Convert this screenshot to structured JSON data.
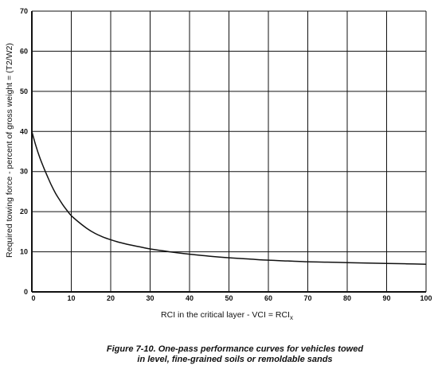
{
  "figure": {
    "caption_line_1": "Figure 7-10.  One-pass performance curves for vehicles towed",
    "caption_line_2": "in level, fine-grained soils or remoldable sands"
  },
  "chart_data": {
    "type": "line",
    "title": "",
    "xlabel": "RCI in the critical layer - VCI = RCI",
    "xlabel_subscript": "x",
    "ylabel": "Required towing force - percent of gross weight = (T2/W2)",
    "xlim": [
      0,
      100
    ],
    "ylim": [
      0,
      70
    ],
    "x_ticks": [
      0,
      10,
      20,
      30,
      40,
      50,
      60,
      70,
      80,
      90,
      100
    ],
    "y_ticks": [
      0,
      10,
      20,
      30,
      40,
      50,
      60,
      70
    ],
    "grid": true,
    "legend": "none",
    "series": [
      {
        "x": [
          0,
          1,
          2,
          3,
          4,
          5,
          6,
          7,
          8,
          9,
          10,
          12,
          14,
          16,
          18,
          20,
          22,
          25,
          28,
          30,
          35,
          40,
          45,
          50,
          55,
          60,
          65,
          70,
          75,
          80,
          85,
          90,
          95,
          100
        ],
        "y": [
          40,
          36.5,
          33.5,
          31,
          28.7,
          26.5,
          24.6,
          23,
          21.5,
          20.2,
          19,
          17.3,
          15.8,
          14.6,
          13.7,
          13,
          12.4,
          11.7,
          11.1,
          10.7,
          10,
          9.4,
          8.9,
          8.5,
          8.2,
          7.9,
          7.7,
          7.5,
          7.4,
          7.3,
          7.2,
          7.1,
          7.0,
          6.9
        ]
      }
    ],
    "colors": {
      "line": "#111111",
      "grid": "#111111",
      "background": "#ffffff"
    }
  }
}
